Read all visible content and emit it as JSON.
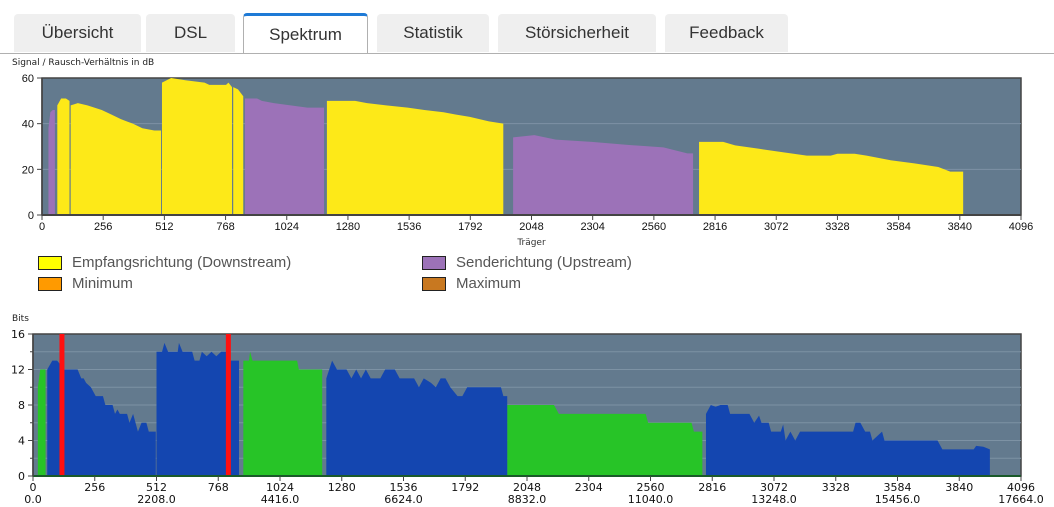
{
  "tabs": [
    {
      "label": "Übersicht",
      "active": false
    },
    {
      "label": "DSL",
      "active": false
    },
    {
      "label": "Spektrum",
      "active": true
    },
    {
      "label": "Statistik",
      "active": false
    },
    {
      "label": "Störsicherheit",
      "active": false
    },
    {
      "label": "Feedback",
      "active": false
    }
  ],
  "colors": {
    "downstream": "#fde918",
    "upstream": "#9c72b8",
    "minimum": "#ff9a00",
    "maximum": "#c87820",
    "plot_bg": "#637a8e",
    "bits_downstream": "#1446b0",
    "bits_upstream": "#27c427",
    "marker": "#ff1010"
  },
  "legend": [
    {
      "label": "Empfangsrichtung (Downstream)",
      "color": "#fde918"
    },
    {
      "label": "Senderichtung (Upstream)",
      "color": "#9c72b8"
    },
    {
      "label": "Minimum",
      "color": "#ff9a00"
    },
    {
      "label": "Maximum",
      "color": "#c87820"
    }
  ],
  "chart_data": [
    {
      "type": "area",
      "title": "Signal / Rausch-Verhältnis in dB",
      "xlabel": "Träger",
      "ylabel": "",
      "xlim": [
        0,
        4096
      ],
      "ylim": [
        0,
        60
      ],
      "x_ticks": [
        "0",
        "256",
        "512",
        "768",
        "1024",
        "1280",
        "1536",
        "1792",
        "2048",
        "2304",
        "2560",
        "2816",
        "3072",
        "3328",
        "3584",
        "3840",
        "4096"
      ],
      "y_ticks": [
        "0",
        "20",
        "40",
        "60"
      ],
      "grid": true,
      "series": [
        {
          "name": "Senderichtung (Upstream)",
          "color": "#9c72b8",
          "segments": [
            [
              [
                27,
                38
              ],
              [
                35,
                45
              ],
              [
                45,
                46
              ],
              [
                54,
                46
              ]
            ],
            [
              [
                849,
                51
              ],
              [
                900,
                51
              ],
              [
                920,
                50
              ],
              [
                970,
                49
              ],
              [
                1040,
                48
              ],
              [
                1110,
                47
              ],
              [
                1180,
                47
              ]
            ],
            [
              [
                1971,
                34
              ],
              [
                2060,
                35
              ],
              [
                2150,
                33
              ],
              [
                2300,
                32
              ],
              [
                2450,
                30.7
              ],
              [
                2600,
                29.6
              ],
              [
                2700,
                27
              ],
              [
                2724,
                27
              ]
            ]
          ]
        },
        {
          "name": "Empfangsrichtung (Downstream)",
          "color": "#fde918",
          "segments": [
            [
              [
                64,
                48
              ],
              [
                80,
                51
              ],
              [
                100,
                51
              ],
              [
                115,
                50
              ]
            ],
            [
              [
                120,
                48
              ],
              [
                150,
                49
              ],
              [
                190,
                48
              ],
              [
                250,
                46
              ],
              [
                290,
                44
              ],
              [
                330,
                42
              ],
              [
                380,
                40
              ],
              [
                420,
                38
              ],
              [
                470,
                37
              ],
              [
                498,
                37
              ]
            ],
            [
              [
                502,
                58
              ],
              [
                540,
                60
              ],
              [
                600,
                59
              ],
              [
                680,
                58
              ],
              [
                700,
                57
              ],
              [
                770,
                57
              ],
              [
                780,
                58
              ],
              [
                795,
                56
              ]
            ],
            [
              [
                800,
                56
              ],
              [
                820,
                55
              ],
              [
                842,
                52
              ]
            ],
            [
              [
                1192,
                50
              ],
              [
                1310,
                50
              ],
              [
                1360,
                49
              ],
              [
                1440,
                48
              ],
              [
                1530,
                47
              ],
              [
                1600,
                46
              ],
              [
                1680,
                45
              ],
              [
                1730,
                44
              ],
              [
                1790,
                43
              ],
              [
                1870,
                41
              ],
              [
                1930,
                40
              ]
            ],
            [
              [
                2749,
                32
              ],
              [
                2850,
                32
              ],
              [
                2900,
                30.5
              ],
              [
                3000,
                29
              ],
              [
                3100,
                27.5
              ],
              [
                3200,
                26
              ],
              [
                3300,
                26
              ],
              [
                3328,
                26.8
              ],
              [
                3400,
                26.8
              ],
              [
                3450,
                26
              ],
              [
                3550,
                24
              ],
              [
                3650,
                22.6
              ],
              [
                3750,
                21
              ],
              [
                3800,
                19
              ],
              [
                3854,
                19
              ]
            ]
          ]
        }
      ]
    },
    {
      "type": "area",
      "title": "Bits",
      "xlabel": "",
      "ylabel": "",
      "xlim": [
        0,
        4096
      ],
      "ylim": [
        0,
        16
      ],
      "x_ticks": [
        "0",
        "256",
        "512",
        "768",
        "1024",
        "1280",
        "1536",
        "1792",
        "2048",
        "2304",
        "2560",
        "2816",
        "3072",
        "3328",
        "3584",
        "3840",
        "4096"
      ],
      "x_ticks_secondary": [
        "0.0",
        "",
        "2208.0",
        "",
        "4416.0",
        "",
        "6624.0",
        "",
        "8832.0",
        "",
        "11040.0",
        "",
        "13248.0",
        "",
        "15456.0",
        "",
        "17664.0"
      ],
      "y_ticks": [
        "0",
        "4",
        "8",
        "12",
        "16"
      ],
      "grid": true,
      "series": [
        {
          "color": "#27c427",
          "segments": [
            [
              [
                20,
                10
              ],
              [
                30,
                12
              ],
              [
                45,
                12
              ],
              [
                52,
                12
              ]
            ],
            [
              [
                872,
                13
              ],
              [
                895,
                13
              ],
              [
                900,
                14
              ],
              [
                910,
                13
              ],
              [
                1095,
                13
              ],
              [
                1102,
                12
              ],
              [
                1199,
                12
              ]
            ],
            [
              [
                1966,
                8
              ],
              [
                2160,
                8
              ],
              [
                2170,
                7.5
              ],
              [
                2180,
                7
              ],
              [
                2540,
                7
              ],
              [
                2550,
                6
              ],
              [
                2730,
                6
              ],
              [
                2740,
                5
              ],
              [
                2775,
                5
              ]
            ]
          ]
        },
        {
          "color": "#1446b0",
          "segments": [
            [
              [
                59,
                12
              ],
              [
                80,
                13
              ],
              [
                100,
                13
              ],
              [
                115,
                12.5
              ],
              [
                130,
                12
              ],
              [
                185,
                12
              ],
              [
                200,
                11
              ],
              [
                210,
                11
              ],
              [
                220,
                10.5
              ],
              [
                240,
                10
              ],
              [
                260,
                9
              ],
              [
                290,
                9
              ],
              [
                300,
                8
              ],
              [
                330,
                8
              ],
              [
                340,
                7
              ],
              [
                350,
                7.5
              ],
              [
                360,
                7
              ],
              [
                390,
                7
              ],
              [
                400,
                6
              ],
              [
                415,
                7
              ],
              [
                435,
                5
              ],
              [
                450,
                6
              ],
              [
                470,
                6
              ],
              [
                480,
                5
              ],
              [
                509,
                5
              ]
            ],
            [
              [
                512,
                14
              ],
              [
                535,
                14
              ],
              [
                545,
                15
              ],
              [
                560,
                14
              ],
              [
                600,
                14
              ],
              [
                605,
                15
              ],
              [
                620,
                14
              ],
              [
                660,
                14
              ],
              [
                670,
                13
              ],
              [
                690,
                13
              ],
              [
                700,
                14
              ],
              [
                720,
                13.5
              ],
              [
                740,
                14
              ],
              [
                760,
                13.5
              ],
              [
                780,
                14
              ],
              [
                800,
                14
              ],
              [
                810,
                13
              ],
              [
                854,
                13
              ]
            ],
            [
              [
                1216,
                11
              ],
              [
                1240,
                13
              ],
              [
                1260,
                12
              ],
              [
                1300,
                12
              ],
              [
                1320,
                11
              ],
              [
                1340,
                12
              ],
              [
                1360,
                11
              ],
              [
                1380,
                12
              ],
              [
                1400,
                11
              ],
              [
                1440,
                11
              ],
              [
                1460,
                12
              ],
              [
                1500,
                12
              ],
              [
                1520,
                11
              ],
              [
                1580,
                11
              ],
              [
                1600,
                10
              ],
              [
                1620,
                11
              ],
              [
                1650,
                10.5
              ],
              [
                1670,
                10
              ],
              [
                1690,
                11
              ],
              [
                1710,
                11
              ],
              [
                1730,
                10
              ],
              [
                1760,
                9
              ],
              [
                1780,
                9
              ],
              [
                1800,
                10
              ],
              [
                1940,
                10
              ],
              [
                1950,
                9
              ],
              [
                1966,
                9
              ]
            ],
            [
              [
                2790,
                7
              ],
              [
                2810,
                8
              ],
              [
                2830,
                7.8
              ],
              [
                2850,
                8
              ],
              [
                2880,
                8
              ],
              [
                2890,
                7
              ],
              [
                2970,
                7
              ],
              [
                2990,
                6
              ],
              [
                3010,
                6.8
              ],
              [
                3020,
                6
              ],
              [
                3050,
                6
              ],
              [
                3060,
                5
              ],
              [
                3100,
                5
              ],
              [
                3110,
                5.8
              ],
              [
                3120,
                4
              ],
              [
                3140,
                5
              ],
              [
                3160,
                4
              ],
              [
                3180,
                5
              ],
              [
                3200,
                5
              ],
              [
                3400,
                5
              ],
              [
                3410,
                6
              ],
              [
                3430,
                6
              ],
              [
                3450,
                5
              ],
              [
                3470,
                5
              ],
              [
                3480,
                4
              ],
              [
                3520,
                5
              ],
              [
                3530,
                4
              ],
              [
                3560,
                4
              ],
              [
                3570,
                4
              ],
              [
                3750,
                4
              ],
              [
                3770,
                3
              ],
              [
                3900,
                3
              ],
              [
                3910,
                3.4
              ],
              [
                3940,
                3.3
              ],
              [
                3967,
                3
              ]
            ]
          ]
        }
      ],
      "markers": [
        120,
        810
      ]
    }
  ]
}
